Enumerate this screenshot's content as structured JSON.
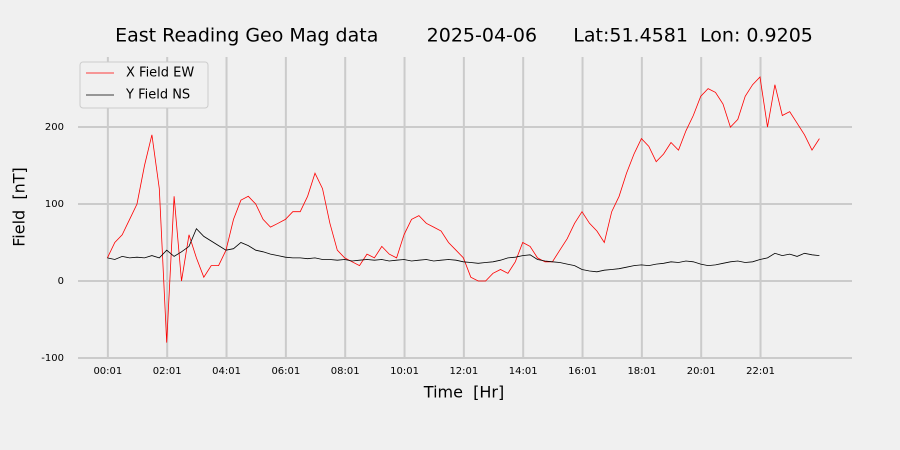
{
  "chart_data": {
    "type": "line",
    "title": "East Reading Geo Mag data        2025-04-06      Lat:51.4581  Lon: 0.9205",
    "x_label": "Time  [Hr]",
    "y_label": "Field  [nT]",
    "x": [
      0,
      0.25,
      0.5,
      0.75,
      1,
      1.25,
      1.5,
      1.75,
      2,
      2.25,
      2.5,
      2.75,
      3,
      3.25,
      3.5,
      3.75,
      4,
      4.25,
      4.5,
      4.75,
      5,
      5.25,
      5.5,
      5.75,
      6,
      6.25,
      6.5,
      6.75,
      7,
      7.25,
      7.5,
      7.75,
      8,
      8.25,
      8.5,
      8.75,
      9,
      9.25,
      9.5,
      9.75,
      10,
      10.25,
      10.5,
      10.75,
      11,
      11.25,
      11.5,
      11.75,
      12,
      12.25,
      12.5,
      12.75,
      13,
      13.25,
      13.5,
      13.75,
      14,
      14.25,
      14.5,
      14.75,
      15,
      15.25,
      15.5,
      15.75,
      16,
      16.25,
      16.5,
      16.75,
      17,
      17.25,
      17.5,
      17.75,
      18,
      18.25,
      18.5,
      18.75,
      19,
      19.25,
      19.5,
      19.75,
      20,
      20.25,
      20.5,
      20.75,
      21,
      21.25,
      21.5,
      21.75,
      22,
      22.25,
      22.5,
      22.75,
      23,
      23.25,
      23.5,
      23.75,
      24
    ],
    "series": [
      {
        "name": "X Field EW",
        "color": "#ff0000",
        "values": [
          30,
          50,
          60,
          80,
          100,
          150,
          190,
          120,
          -80,
          110,
          0,
          60,
          30,
          5,
          20,
          20,
          40,
          80,
          105,
          110,
          100,
          80,
          70,
          75,
          80,
          90,
          90,
          110,
          140,
          120,
          75,
          40,
          30,
          25,
          20,
          35,
          30,
          45,
          35,
          30,
          60,
          80,
          85,
          75,
          70,
          65,
          50,
          40,
          30,
          5,
          0,
          0,
          10,
          15,
          10,
          25,
          50,
          45,
          30,
          25,
          25,
          40,
          55,
          75,
          90,
          75,
          65,
          50,
          90,
          110,
          140,
          165,
          185,
          175,
          155,
          165,
          180,
          170,
          195,
          215,
          240,
          250,
          245,
          230,
          200,
          210,
          240,
          255,
          265,
          200,
          255,
          215,
          220,
          205,
          190,
          170,
          185
        ]
      },
      {
        "name": "Y Field NS",
        "color": "#000000",
        "values": [
          30,
          28,
          32,
          30,
          31,
          30,
          33,
          30,
          40,
          32,
          38,
          45,
          68,
          58,
          52,
          46,
          40,
          42,
          50,
          46,
          40,
          38,
          35,
          33,
          31,
          30,
          30,
          29,
          30,
          28,
          28,
          27,
          28,
          26,
          27,
          28,
          27,
          28,
          26,
          27,
          28,
          26,
          27,
          28,
          26,
          27,
          28,
          27,
          25,
          24,
          23,
          24,
          25,
          27,
          30,
          31,
          33,
          34,
          28,
          26,
          25,
          24,
          22,
          20,
          15,
          13,
          12,
          14,
          15,
          16,
          18,
          20,
          21,
          20,
          22,
          23,
          25,
          24,
          26,
          25,
          22,
          20,
          21,
          23,
          25,
          26,
          24,
          25,
          28,
          30,
          36,
          33,
          35,
          32,
          36,
          34,
          33
        ]
      }
    ],
    "xlim": [
      -0.99,
      25.1
    ],
    "ylim": [
      -100,
      291
    ],
    "xticks": [
      {
        "value": 0.0167,
        "label": "00:01"
      },
      {
        "value": 2.0167,
        "label": "02:01"
      },
      {
        "value": 4.0167,
        "label": "04:01"
      },
      {
        "value": 6.0167,
        "label": "06:01"
      },
      {
        "value": 8.0167,
        "label": "08:01"
      },
      {
        "value": 10.0167,
        "label": "10:01"
      },
      {
        "value": 12.0167,
        "label": "12:01"
      },
      {
        "value": 14.0167,
        "label": "14:01"
      },
      {
        "value": 16.0167,
        "label": "16:01"
      },
      {
        "value": 18.0167,
        "label": "18:01"
      },
      {
        "value": 20.0167,
        "label": "20:01"
      },
      {
        "value": 22.0167,
        "label": "22:01"
      }
    ],
    "yticks": [
      -100,
      0,
      100,
      200
    ],
    "grid": true,
    "legend": "upper-left"
  }
}
